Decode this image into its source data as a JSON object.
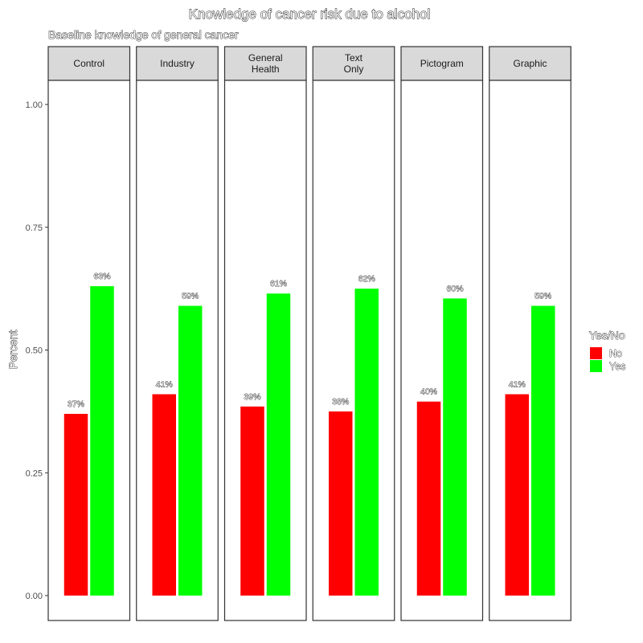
{
  "chart_data": {
    "type": "bar",
    "title": "Knowledge of cancer risk due to alcohol",
    "subtitle": "Baseline knowledge of general cancer",
    "xlabel": "",
    "ylabel": "Percent",
    "ylim": [
      0,
      1.05
    ],
    "yticks": [
      0,
      0.25,
      0.5,
      0.75,
      1.0
    ],
    "ytick_labels": [
      "0.00",
      "0.25",
      "0.50",
      "0.75",
      "1.00"
    ],
    "facets": [
      "Control",
      "Industry",
      "General Health",
      "Text Only",
      "Pictogram",
      "Graphic"
    ],
    "facet_labels": [
      [
        "Control"
      ],
      [
        "Industry"
      ],
      [
        "General",
        "Health"
      ],
      [
        "Text",
        "Only"
      ],
      [
        "Pictogram"
      ],
      [
        "Graphic"
      ]
    ],
    "series": [
      {
        "name": "No",
        "color": "#ff0000",
        "values": [
          0.37,
          0.41,
          0.385,
          0.375,
          0.395,
          0.41
        ],
        "labels": [
          "37%",
          "41%",
          "39%",
          "38%",
          "40%",
          "41%"
        ]
      },
      {
        "name": "Yes",
        "color": "#00ff00",
        "values": [
          0.63,
          0.59,
          0.615,
          0.625,
          0.605,
          0.59
        ],
        "labels": [
          "63%",
          "59%",
          "61%",
          "62%",
          "60%",
          "59%"
        ]
      }
    ],
    "legend": {
      "title": "Yes/No",
      "position": "right"
    },
    "grid": false
  }
}
